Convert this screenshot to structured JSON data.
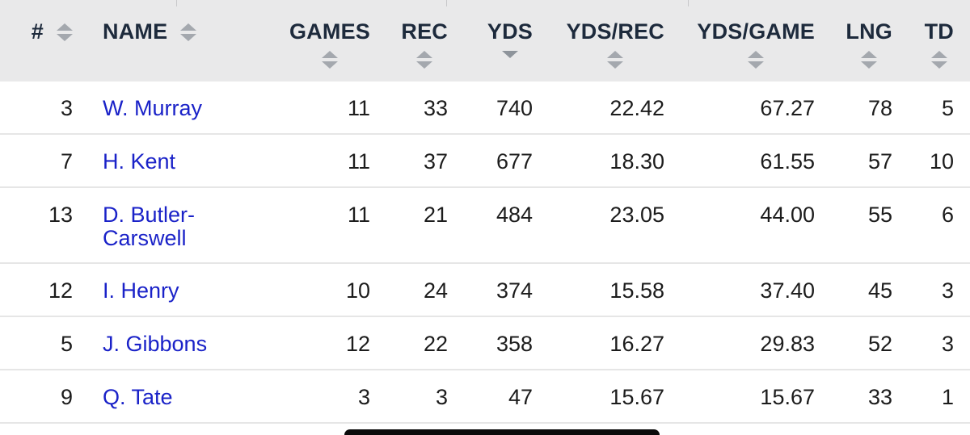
{
  "headers": {
    "number": "#",
    "name": "NAME",
    "games": "GAMES",
    "rec": "REC",
    "yds": "YDS",
    "yds_rec": "YDS/REC",
    "yds_game": "YDS/GAME",
    "lng": "LNG",
    "td": "TD"
  },
  "active_sort": "yds",
  "sort_direction": "descending",
  "colors": {
    "header_bg": "#e9e9ea",
    "header_text": "#1d2a3c",
    "link": "#1a22c8",
    "sort_icon": "#a4a8ae"
  },
  "rows": [
    {
      "number": "3",
      "name": "W. Murray",
      "games": "11",
      "rec": "33",
      "yds": "740",
      "yds_rec": "22.42",
      "yds_game": "67.27",
      "lng": "78",
      "td": "5"
    },
    {
      "number": "7",
      "name": "H. Kent",
      "games": "11",
      "rec": "37",
      "yds": "677",
      "yds_rec": "18.30",
      "yds_game": "61.55",
      "lng": "57",
      "td": "10"
    },
    {
      "number": "13",
      "name": "D. Butler-Carswell",
      "games": "11",
      "rec": "21",
      "yds": "484",
      "yds_rec": "23.05",
      "yds_game": "44.00",
      "lng": "55",
      "td": "6"
    },
    {
      "number": "12",
      "name": "I. Henry",
      "games": "10",
      "rec": "24",
      "yds": "374",
      "yds_rec": "15.58",
      "yds_game": "37.40",
      "lng": "45",
      "td": "3"
    },
    {
      "number": "5",
      "name": "J. Gibbons",
      "games": "12",
      "rec": "22",
      "yds": "358",
      "yds_rec": "16.27",
      "yds_game": "29.83",
      "lng": "52",
      "td": "3"
    },
    {
      "number": "9",
      "name": "Q. Tate",
      "games": "3",
      "rec": "3",
      "yds": "47",
      "yds_rec": "15.67",
      "yds_game": "15.67",
      "lng": "33",
      "td": "1"
    }
  ]
}
